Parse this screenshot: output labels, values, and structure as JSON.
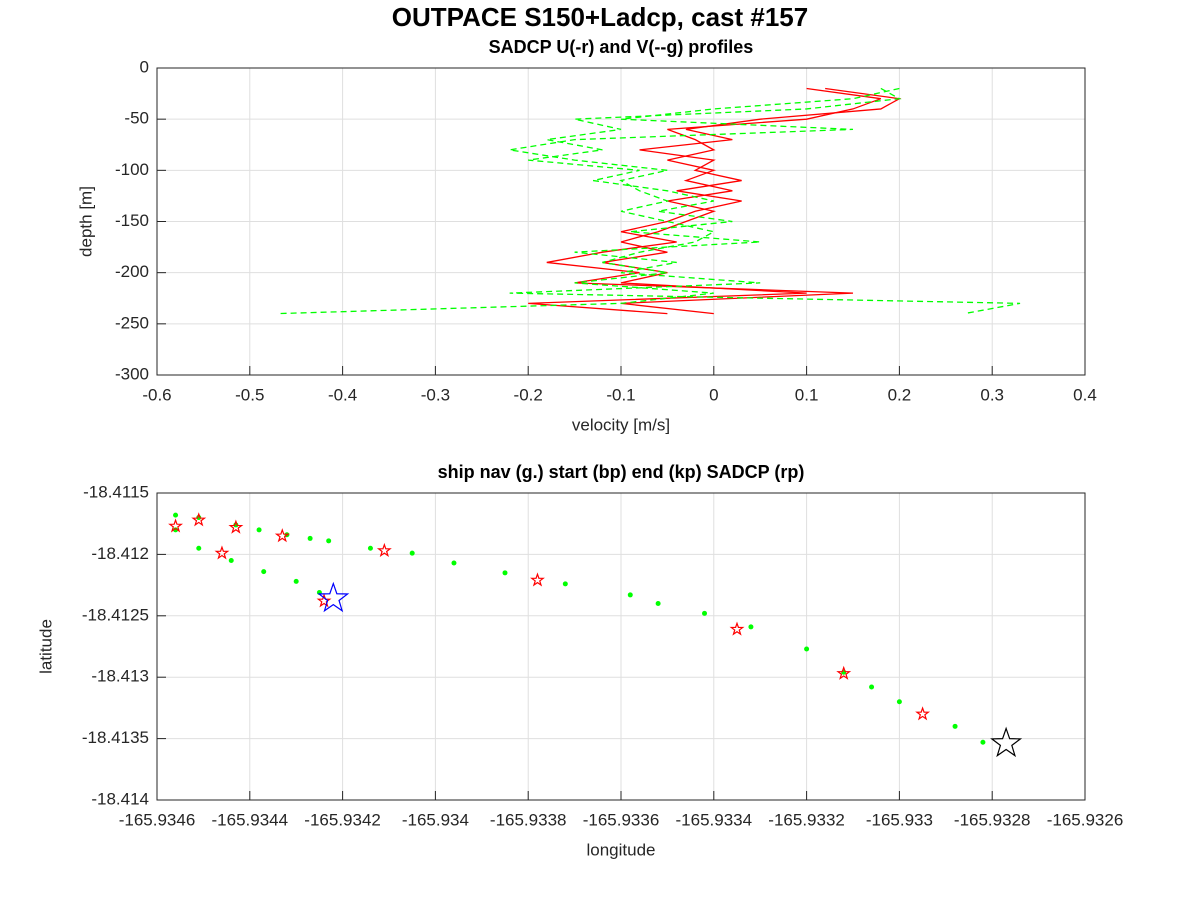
{
  "title": "OUTPACE S150+Ladcp, cast #157",
  "chart_data": [
    {
      "type": "line",
      "title": "SADCP U(-r) and V(--g) profiles",
      "xlabel": "velocity [m/s]",
      "ylabel": "depth [m]",
      "xlim": [
        -0.6,
        0.4
      ],
      "ylim": [
        -300,
        0
      ],
      "xticks": [
        -0.6,
        -0.5,
        -0.4,
        -0.3,
        -0.2,
        -0.1,
        0,
        0.1,
        0.2,
        0.3,
        0.4
      ],
      "yticks": [
        -300,
        -250,
        -200,
        -150,
        -100,
        -50,
        0
      ],
      "grid": true,
      "series": [
        {
          "color": "#ff0000",
          "dash": false,
          "x": [
            0.1,
            0.18,
            0.15,
            0.1,
            -0.05,
            -0.02,
            0.0,
            -0.05,
            0.0,
            -0.03,
            0.02,
            -0.05,
            0.0,
            -0.03,
            -0.06,
            -0.1,
            -0.05,
            -0.12,
            -0.05,
            -0.1,
            0.1,
            -0.2,
            -0.05
          ],
          "y": [
            -20,
            -30,
            -40,
            -50,
            -60,
            -70,
            -80,
            -90,
            -100,
            -110,
            -120,
            -130,
            -140,
            -150,
            -160,
            -170,
            -180,
            -190,
            -200,
            -210,
            -220,
            -230,
            -240
          ]
        },
        {
          "color": "#ff0000",
          "dash": false,
          "x": [
            0.12,
            0.2,
            0.18,
            0.05,
            -0.03,
            0.02,
            -0.08,
            0.0,
            -0.02,
            0.03,
            -0.04,
            0.03,
            -0.02,
            -0.05,
            -0.1,
            -0.04,
            -0.12,
            -0.18,
            -0.08,
            -0.15,
            0.15,
            -0.1,
            0.0
          ],
          "y": [
            -20,
            -30,
            -40,
            -50,
            -60,
            -70,
            -80,
            -90,
            -100,
            -110,
            -120,
            -130,
            -140,
            -150,
            -160,
            -170,
            -180,
            -190,
            -200,
            -210,
            -220,
            -230,
            -240
          ]
        },
        {
          "color": "#00ff00",
          "dash": true,
          "x": [
            0.2,
            0.15,
            0.0,
            -0.1,
            0.15,
            -0.15,
            -0.22,
            -0.15,
            -0.05,
            -0.1,
            -0.08,
            -0.05,
            -0.1,
            -0.05,
            0.0,
            -0.02,
            -0.08,
            -0.12,
            -0.05,
            -0.15,
            0.0,
            -0.1,
            -0.47
          ],
          "y": [
            -20,
            -30,
            -40,
            -50,
            -60,
            -70,
            -80,
            -90,
            -100,
            -110,
            -120,
            -130,
            -140,
            -150,
            -160,
            -170,
            -180,
            -190,
            -200,
            -210,
            -220,
            -230,
            -240
          ]
        },
        {
          "color": "#00ff00",
          "dash": true,
          "x": [
            0.18,
            0.2,
            0.1,
            -0.15,
            -0.1,
            -0.18,
            -0.12,
            -0.2,
            -0.08,
            -0.13,
            -0.05,
            0.0,
            -0.06,
            0.02,
            -0.09,
            0.05,
            -0.15,
            -0.04,
            -0.1,
            0.05,
            -0.22,
            0.33,
            0.27
          ],
          "y": [
            -20,
            -30,
            -40,
            -50,
            -60,
            -70,
            -80,
            -90,
            -100,
            -110,
            -120,
            -130,
            -140,
            -150,
            -160,
            -170,
            -180,
            -190,
            -200,
            -210,
            -220,
            -230,
            -240
          ]
        }
      ]
    },
    {
      "type": "scatter",
      "title": "ship nav (g.) start (bp) end (kp) SADCP (rp)",
      "xlabel": "longitude",
      "ylabel": "latitude",
      "xlim": [
        -165.9346,
        -165.9326
      ],
      "ylim": [
        -18.414,
        -18.4115
      ],
      "xticks": [
        -165.9346,
        -165.9344,
        -165.9342,
        -165.934,
        -165.9338,
        -165.9336,
        -165.9334,
        -165.9332,
        -165.933,
        -165.9328,
        -165.9326
      ],
      "yticks": [
        -18.414,
        -18.4135,
        -18.413,
        -18.4125,
        -18.412,
        -18.4115
      ],
      "grid": true,
      "series": [
        {
          "color": "#00ff00",
          "marker": "dot",
          "marker_size": 2.5,
          "x": [
            -165.93456,
            -165.93451,
            -165.93444,
            -165.93437,
            -165.9343,
            -165.93425,
            -165.93456,
            -165.93451,
            -165.93443,
            -165.93438,
            -165.93432,
            -165.93427,
            -165.93423,
            -165.93414,
            -165.93405,
            -165.93396,
            -165.93385,
            -165.93372,
            -165.93358,
            -165.93352,
            -165.93342,
            -165.93332,
            -165.9332,
            -165.93312,
            -165.93306,
            -165.933,
            -165.93288,
            -165.93282
          ],
          "y": [
            -18.4118,
            -18.41195,
            -18.41205,
            -18.41214,
            -18.41222,
            -18.41231,
            -18.41168,
            -18.4117,
            -18.41176,
            -18.4118,
            -18.41184,
            -18.41187,
            -18.41189,
            -18.41195,
            -18.41199,
            -18.41207,
            -18.41215,
            -18.41224,
            -18.41233,
            -18.4124,
            -18.41248,
            -18.41259,
            -18.41277,
            -18.41296,
            -18.41308,
            -18.4132,
            -18.4134,
            -18.41353
          ]
        },
        {
          "color": "#ff0000",
          "marker": "star",
          "marker_size": 6,
          "x": [
            -165.93456,
            -165.93451,
            -165.93443,
            -165.93433,
            -165.93446,
            -165.93411,
            -165.93378,
            -165.93335,
            -165.93312,
            -165.93295,
            -165.93424
          ],
          "y": [
            -18.41177,
            -18.41172,
            -18.41178,
            -18.41185,
            -18.41199,
            -18.41197,
            -18.41221,
            -18.41261,
            -18.41297,
            -18.4133,
            -18.41238
          ]
        },
        {
          "color": "#0000ff",
          "marker": "star",
          "marker_size": 15,
          "x": [
            -165.93422
          ],
          "y": [
            -18.41236
          ]
        },
        {
          "color": "#000000",
          "marker": "star",
          "marker_size": 15,
          "x": [
            -165.93277
          ],
          "y": [
            -18.41354
          ]
        }
      ]
    }
  ]
}
